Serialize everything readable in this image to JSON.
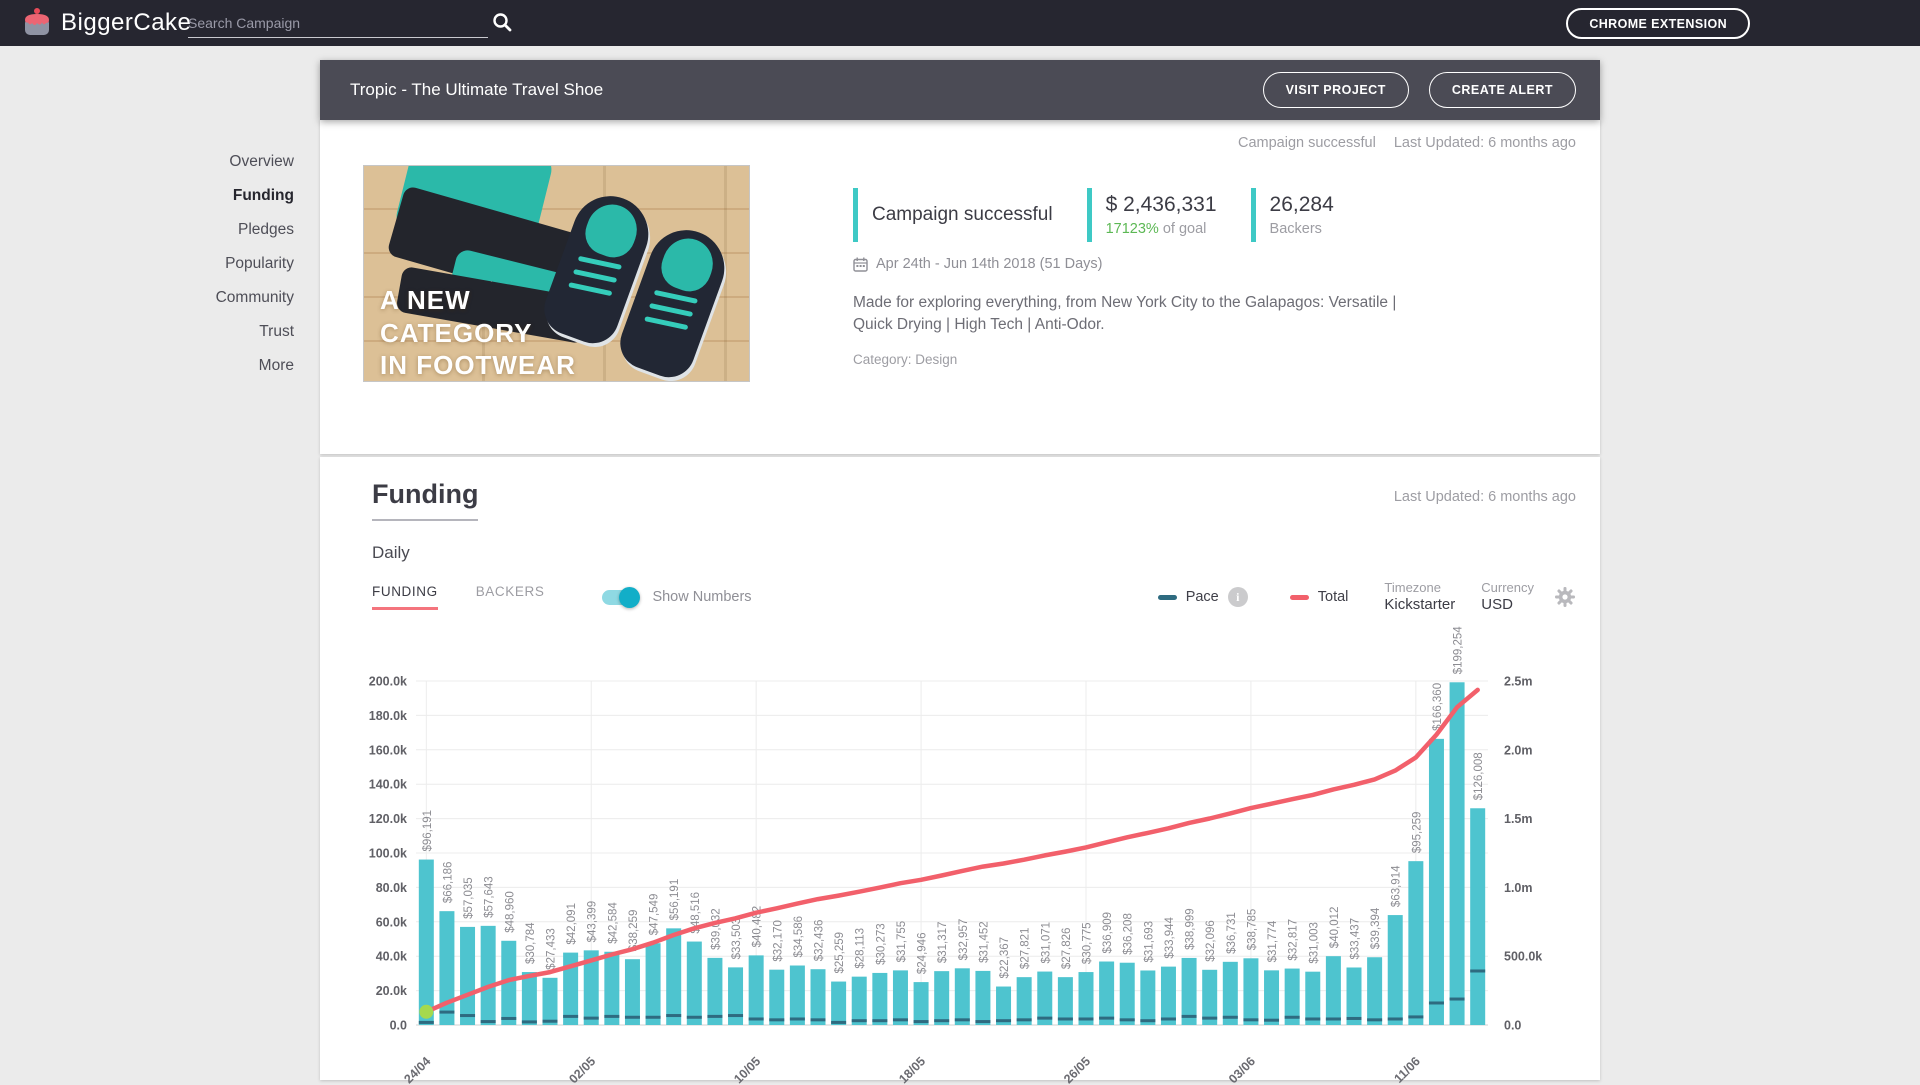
{
  "nav": {
    "brand": "BiggerCake",
    "search_placeholder": "Search Campaign",
    "chrome_extension_label": "CHROME EXTENSION"
  },
  "campaign_header": {
    "title": "Tropic - The Ultimate Travel Shoe",
    "visit_project_label": "VISIT PROJECT",
    "create_alert_label": "CREATE ALERT"
  },
  "sidebar": {
    "items": [
      {
        "label": "Overview",
        "active": false
      },
      {
        "label": "Funding",
        "active": true
      },
      {
        "label": "Pledges",
        "active": false
      },
      {
        "label": "Popularity",
        "active": false
      },
      {
        "label": "Community",
        "active": false
      },
      {
        "label": "Trust",
        "active": false
      },
      {
        "label": "More",
        "active": false
      }
    ]
  },
  "overview": {
    "status_note": "Campaign successful",
    "last_updated": "Last Updated: 6 months ago",
    "image_brand": "tropic",
    "caption_lines": [
      "A NEW",
      "CATEGORY",
      "IN FOOTWEAR"
    ],
    "stats": {
      "status": "Campaign successful",
      "raised": "$ 2,436,331",
      "pct": "17123%",
      "pct_suffix": " of goal",
      "backers": "26,284",
      "backers_label": "Backers"
    },
    "date_range": "Apr 24th - Jun 14th 2018 (51 Days)",
    "description": "Made for exploring everything, from New York City to the Galapagos: Versatile | Quick Drying | High Tech | Anti-Odor.",
    "category": "Category: Design"
  },
  "funding_section": {
    "title": "Funding",
    "last_updated": "Last Updated: 6 months ago",
    "frequency": "Daily",
    "tab_funding": "FUNDING",
    "tab_backers": "BACKERS",
    "show_numbers_label": "Show Numbers",
    "legend_pace": "Pace",
    "legend_total": "Total",
    "timezone_label": "Timezone",
    "timezone_value": "Kickstarter",
    "currency_label": "Currency",
    "currency_value": "USD"
  },
  "theme": {
    "accent_teal": "#3ec9c5",
    "tab_underline_red": "#f4747d",
    "toggle_teal": "#12aec8",
    "goal_green": "#5cb854",
    "nav_bg": "#262630",
    "header_bg": "#4b4b55"
  },
  "chart_data": {
    "type": "bar",
    "series": [
      {
        "name": "daily funding (bars)",
        "axis": "left"
      },
      {
        "name": "Pace (dashes)",
        "axis": "left"
      },
      {
        "name": "Total (cumulative line)",
        "axis": "right"
      }
    ],
    "daily_funding": [
      96191,
      66186,
      57035,
      57643,
      48960,
      30784,
      27433,
      42091,
      43399,
      42584,
      38259,
      47549,
      56191,
      48516,
      39032,
      33503,
      40482,
      32170,
      34586,
      32436,
      25259,
      28113,
      30273,
      31755,
      24946,
      31317,
      32957,
      31452,
      22367,
      27821,
      31071,
      27826,
      30775,
      36909,
      36208,
      31693,
      33944,
      38999,
      32096,
      36731,
      38785,
      31774,
      32817,
      31003,
      40012,
      33437,
      39394,
      63914,
      95259,
      166360,
      199254,
      126008
    ],
    "pace_approx": [
      1500,
      7500,
      5500,
      2000,
      3800,
      1800,
      2200,
      5000,
      4000,
      5000,
      4500,
      4500,
      5500,
      4500,
      5000,
      5500,
      3500,
      3000,
      3500,
      3000,
      1500,
      2500,
      2500,
      3000,
      2000,
      2500,
      3000,
      2000,
      2500,
      3000,
      4000,
      3500,
      3500,
      4000,
      3000,
      2500,
      3500,
      5000,
      4000,
      4500,
      3000,
      2800,
      4500,
      3500,
      3500,
      3800,
      3000,
      3500,
      4700,
      12800,
      15100,
      31400
    ],
    "x_ticks": [
      {
        "index": 0,
        "label": "24/04"
      },
      {
        "index": 8,
        "label": "02/05"
      },
      {
        "index": 16,
        "label": "10/05"
      },
      {
        "index": 24,
        "label": "18/05"
      },
      {
        "index": 32,
        "label": "26/05"
      },
      {
        "index": 40,
        "label": "03/06"
      },
      {
        "index": 48,
        "label": "11/06"
      }
    ],
    "left_axis": {
      "max": 200000,
      "ticks": [
        "0.0",
        "20.0k",
        "40.0k",
        "60.0k",
        "80.0k",
        "100.0k",
        "120.0k",
        "140.0k",
        "160.0k",
        "180.0k",
        "200.0k"
      ]
    },
    "right_axis": {
      "max": 2500000,
      "ticks": [
        "0.0",
        "500.0k",
        "1.0m",
        "1.5m",
        "2.0m",
        "2.5m"
      ]
    },
    "grid": true,
    "colors": {
      "bar": "#4ec4cf",
      "pace": "#2e6b80",
      "total": "#f2606b",
      "start_dot": "#a5d94e"
    }
  }
}
